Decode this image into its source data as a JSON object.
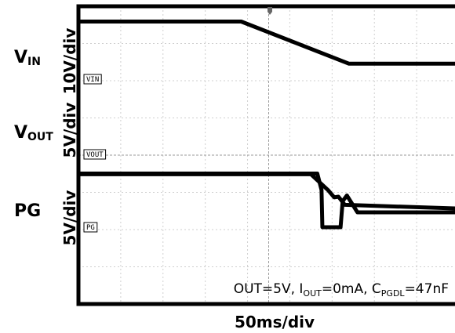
{
  "chart_data": {
    "type": "line",
    "title": "",
    "xlabel": "50ms/div",
    "annotation": {
      "segments": [
        {
          "text": "OUT=5V, I",
          "sub": false
        },
        {
          "text": "OUT",
          "sub": true
        },
        {
          "text": "=0mA, C",
          "sub": false
        },
        {
          "text": "PGDL",
          "sub": true
        },
        {
          "text": "=47nF",
          "sub": false
        }
      ]
    },
    "xlim": [
      0,
      9
    ],
    "grid": true,
    "series": [
      {
        "name": "VIN",
        "label_main": "V",
        "label_sub": "IN",
        "scale": "10V/div",
        "trace_tag": "VIN",
        "x": [
          0,
          3.85,
          6.4,
          9
        ],
        "y": [
          3.56,
          3.56,
          2.43,
          2.43
        ]
      },
      {
        "name": "VOUT",
        "label_main": "V",
        "label_sub": "OUT",
        "scale": "5V/div",
        "trace_tag": "VOUT",
        "x": [
          0,
          5.5,
          5.9,
          6.05,
          6.15,
          6.3,
          9
        ],
        "y": [
          1.42,
          1.42,
          1.0,
          0.8,
          0.82,
          0.6,
          0.5
        ]
      },
      {
        "name": "PG",
        "label_main": "PG",
        "label_sub": "",
        "scale": "5V/div",
        "trace_tag": "PG",
        "x": [
          0,
          5.65,
          5.75,
          5.77,
          6.2,
          6.25,
          6.35,
          6.6,
          9
        ],
        "y": [
          1.44,
          1.44,
          1.0,
          0.0,
          0.0,
          0.7,
          0.85,
          0.4,
          0.4
        ]
      }
    ]
  }
}
